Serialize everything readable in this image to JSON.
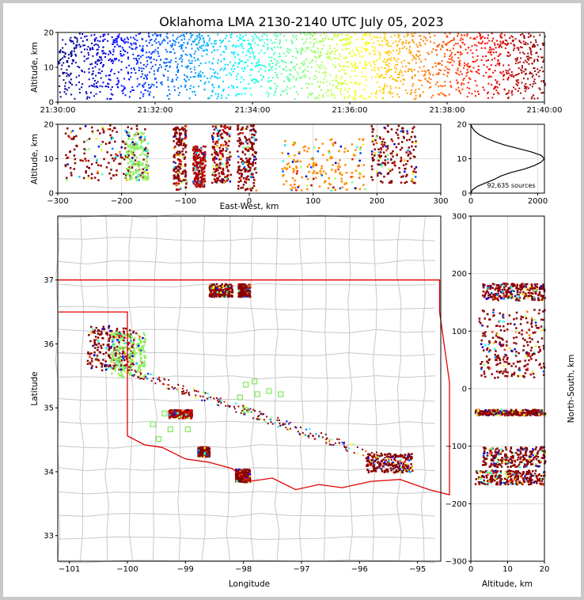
{
  "title": "Oklahoma LMA 2130-2140 UTC July 05, 2023",
  "chart_data": [
    {
      "panel": "time-height",
      "type": "scatter",
      "ylabel": "Altitude, km",
      "xlim": [
        "21:30:00",
        "21:40:00"
      ],
      "ylim": [
        0,
        20
      ],
      "x_ticks": [
        "21:30:00",
        "21:32:00",
        "21:34:00",
        "21:36:00",
        "21:38:00",
        "21:40:00"
      ],
      "y_ticks": [
        "0",
        "10",
        "20"
      ],
      "colormap": "jet, colored by time",
      "points_bands": [
        {
          "x_start": "21:30:00",
          "x_end": "21:40:00",
          "y_min": 1,
          "y_max": 20
        }
      ]
    },
    {
      "panel": "east-west vs altitude",
      "type": "scatter",
      "xlabel": "East-West, km",
      "ylabel": "Altitude, km",
      "xlim": [
        -300,
        300
      ],
      "ylim": [
        0,
        20
      ],
      "x_ticks": [
        "−300",
        "−200",
        "−100",
        "0",
        "100",
        "200",
        "300"
      ],
      "y_ticks": [
        "0",
        "10",
        "20"
      ],
      "clusters": [
        {
          "x": [
            -290,
            -160
          ],
          "y": [
            4,
            20
          ],
          "color": "#8b0000"
        },
        {
          "x": [
            -195,
            -160
          ],
          "y": [
            4,
            18
          ],
          "color": "#90ee60"
        },
        {
          "x": [
            -120,
            -100
          ],
          "y": [
            1,
            20
          ],
          "color": "#8b0000"
        },
        {
          "x": [
            -90,
            -70
          ],
          "y": [
            2,
            14
          ],
          "color": "#b00000"
        },
        {
          "x": [
            -60,
            -30
          ],
          "y": [
            3,
            20
          ],
          "color": "#a00000"
        },
        {
          "x": [
            -20,
            10
          ],
          "y": [
            1,
            20
          ],
          "color": "#8b0000"
        },
        {
          "x": [
            50,
            180
          ],
          "y": [
            1,
            16
          ],
          "color": "#ff8c00"
        },
        {
          "x": [
            190,
            260
          ],
          "y": [
            3,
            20
          ],
          "color": "#8b0000"
        }
      ]
    },
    {
      "panel": "altitude histogram",
      "type": "line",
      "xlim": [
        0,
        2200
      ],
      "ylim": [
        0,
        20
      ],
      "x_ticks": [
        "0",
        "2000"
      ],
      "y_ticks": [
        "0",
        "10",
        "20"
      ],
      "annotation": "92,635 sources",
      "x": [
        0,
        50,
        200,
        450,
        700,
        900,
        1200,
        1600,
        1900,
        2100,
        2200,
        2100,
        1800,
        1400,
        1000,
        700,
        450,
        250,
        120,
        40,
        0
      ],
      "y": [
        0,
        1,
        2,
        3,
        4,
        5,
        6,
        7,
        8,
        9,
        10,
        11,
        12,
        13,
        14,
        15,
        16,
        17,
        18,
        19,
        20
      ]
    },
    {
      "panel": "plan view",
      "type": "scatter",
      "xlabel": "Longitude",
      "ylabel": "Latitude",
      "xlim": [
        -101.2,
        -94.6
      ],
      "ylim": [
        32.6,
        38.0
      ],
      "x_ticks": [
        "−101",
        "−100",
        "−99",
        "−98",
        "−97",
        "−96",
        "−95"
      ],
      "y_ticks": [
        "33",
        "34",
        "35",
        "36",
        "37"
      ],
      "clusters": [
        {
          "lon": [
            -100.7,
            -99.9
          ],
          "lat": [
            35.6,
            36.3
          ],
          "color": "#8b0000"
        },
        {
          "lon": [
            -100.3,
            -99.7
          ],
          "lat": [
            35.5,
            36.2
          ],
          "color": "#90ee60"
        },
        {
          "lon": [
            -98.6,
            -98.2
          ],
          "lat": [
            36.75,
            36.95
          ],
          "color": "#8b0000"
        },
        {
          "lon": [
            -98.1,
            -97.9
          ],
          "lat": [
            36.75,
            36.95
          ],
          "color": "#8b0000"
        },
        {
          "lon": [
            -99.3,
            -98.9
          ],
          "lat": [
            34.85,
            34.98
          ],
          "color": "#b00000"
        },
        {
          "lon": [
            -98.15,
            -97.9
          ],
          "lat": [
            33.85,
            34.05
          ],
          "color": "#8b0000"
        },
        {
          "lon": [
            -95.9,
            -95.1
          ],
          "lat": [
            34.0,
            34.3
          ],
          "color": "#8b0000"
        },
        {
          "lon": [
            -98.8,
            -98.6
          ],
          "lat": [
            34.25,
            34.4
          ],
          "color": "#8b0000"
        }
      ]
    },
    {
      "panel": "altitude vs north-south",
      "type": "scatter",
      "xlabel": "Altitude, km",
      "ylabel": "North-South, km",
      "xlim": [
        0,
        20
      ],
      "ylim": [
        -300,
        300
      ],
      "x_ticks": [
        "0",
        "10",
        "20"
      ],
      "y_ticks": [
        "−300",
        "−200",
        "−100",
        "0",
        "100",
        "200",
        "300"
      ],
      "clusters": [
        {
          "alt": [
            3,
            20
          ],
          "ns": [
            155,
            185
          ],
          "color": "#8b0000"
        },
        {
          "alt": [
            2,
            20
          ],
          "ns": [
            20,
            140
          ],
          "color": "#8b0000"
        },
        {
          "alt": [
            1,
            20
          ],
          "ns": [
            -45,
            -35
          ],
          "color": "#8b0000"
        },
        {
          "alt": [
            3,
            20
          ],
          "ns": [
            -135,
            -100
          ],
          "color": "#8b0000"
        },
        {
          "alt": [
            1,
            20
          ],
          "ns": [
            -165,
            -140
          ],
          "color": "#8b0000"
        }
      ]
    }
  ]
}
